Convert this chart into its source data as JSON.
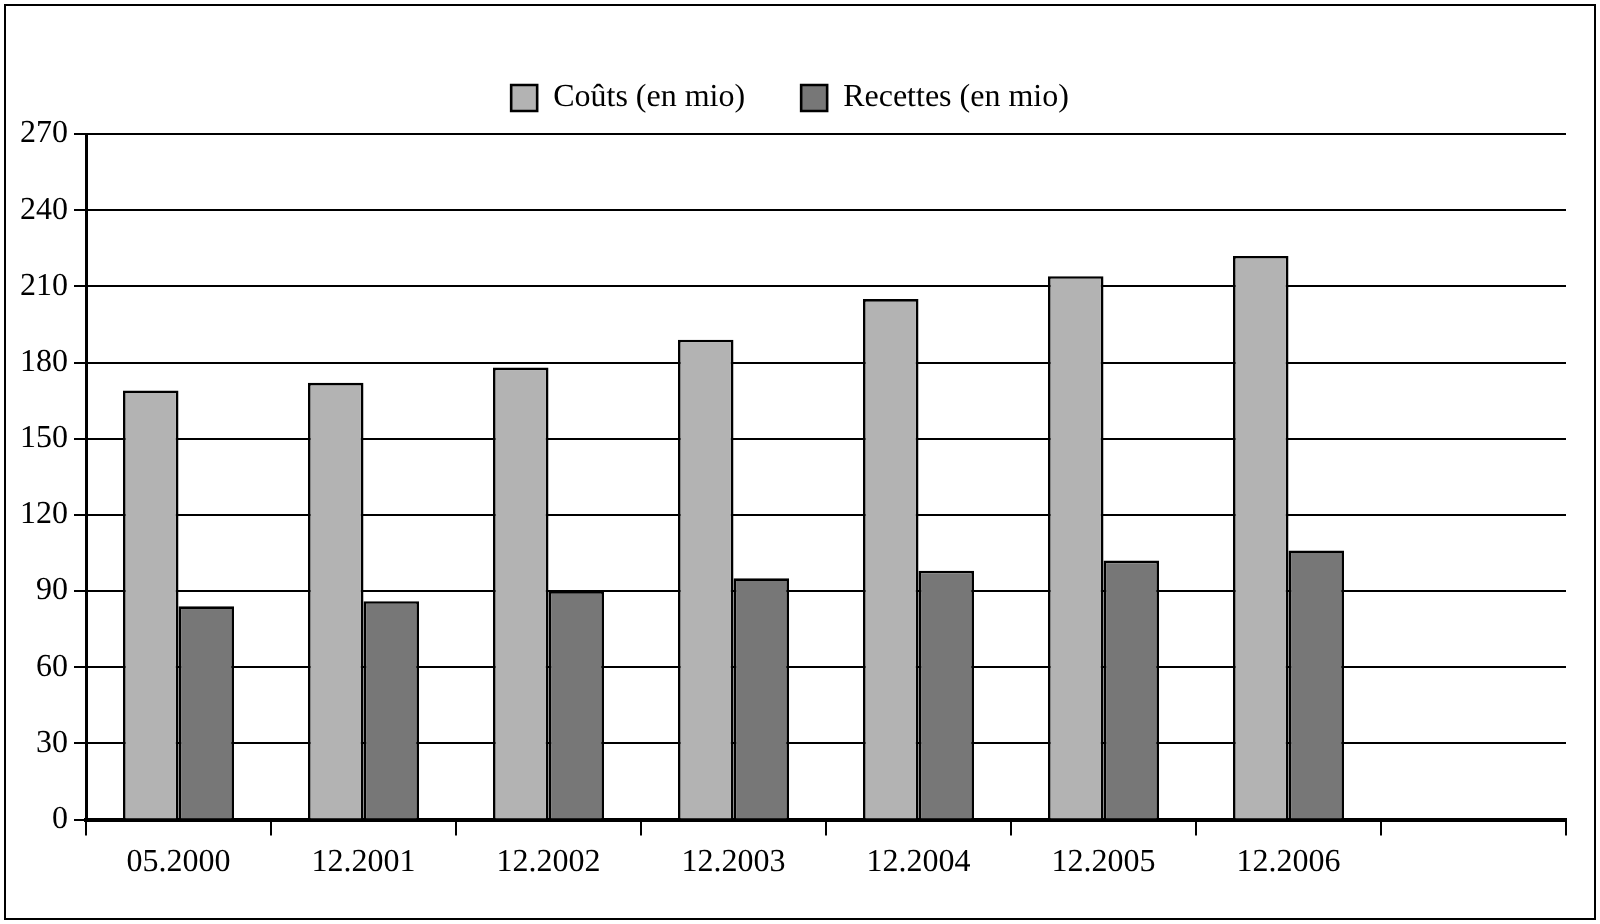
{
  "chart_data": {
    "type": "bar",
    "categories": [
      "05.2000",
      "12.2001",
      "12.2002",
      "12.2003",
      "12.2004",
      "12.2005",
      "12.2006",
      null
    ],
    "series": [
      {
        "name": "Coûts (en mio)",
        "color": "#b3b3b3",
        "values": [
          169,
          172,
          178,
          189,
          205,
          214,
          222,
          null
        ]
      },
      {
        "name": "Recettes (en mio)",
        "color": "#777777",
        "values": [
          84,
          86,
          90,
          95,
          98,
          102,
          106,
          null
        ]
      }
    ],
    "ylim": [
      0,
      270
    ],
    "yticks": [
      0,
      30,
      60,
      90,
      120,
      150,
      180,
      210,
      240,
      270
    ],
    "grid": "y",
    "legend": "top"
  }
}
